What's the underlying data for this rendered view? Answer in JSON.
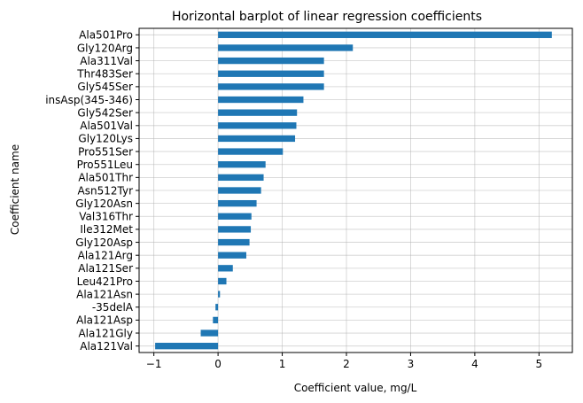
{
  "chart_data": {
    "type": "bar",
    "orientation": "horizontal",
    "title": "Horizontal barplot of linear regression coefficients",
    "xlabel": "Coefficient value, mg/L",
    "ylabel": "Coefficient name",
    "xlim": [
      -1.23,
      5.52
    ],
    "xticks": [
      -1,
      0,
      1,
      2,
      3,
      4,
      5
    ],
    "grid": true,
    "bar_color": "#1f77b4",
    "categories": [
      "Ala501Pro",
      "Gly120Arg",
      "Ala311Val",
      "Thr483Ser",
      "Gly545Ser",
      "insAsp(345-346)",
      "Gly542Ser",
      "Ala501Val",
      "Gly120Lys",
      "Pro551Ser",
      "Pro551Leu",
      "Ala501Thr",
      "Asn512Tyr",
      "Gly120Asn",
      "Val316Thr",
      "Ile312Met",
      "Gly120Asp",
      "Ala121Arg",
      "Ala121Ser",
      "Leu421Pro",
      "Ala121Asn",
      "-35delA",
      "Ala121Asp",
      "Ala121Gly",
      "Ala121Val"
    ],
    "values": [
      5.2,
      2.1,
      1.65,
      1.65,
      1.65,
      1.33,
      1.23,
      1.22,
      1.2,
      1.01,
      0.74,
      0.71,
      0.67,
      0.6,
      0.52,
      0.51,
      0.49,
      0.44,
      0.23,
      0.13,
      0.03,
      -0.04,
      -0.08,
      -0.27,
      -0.98
    ]
  }
}
